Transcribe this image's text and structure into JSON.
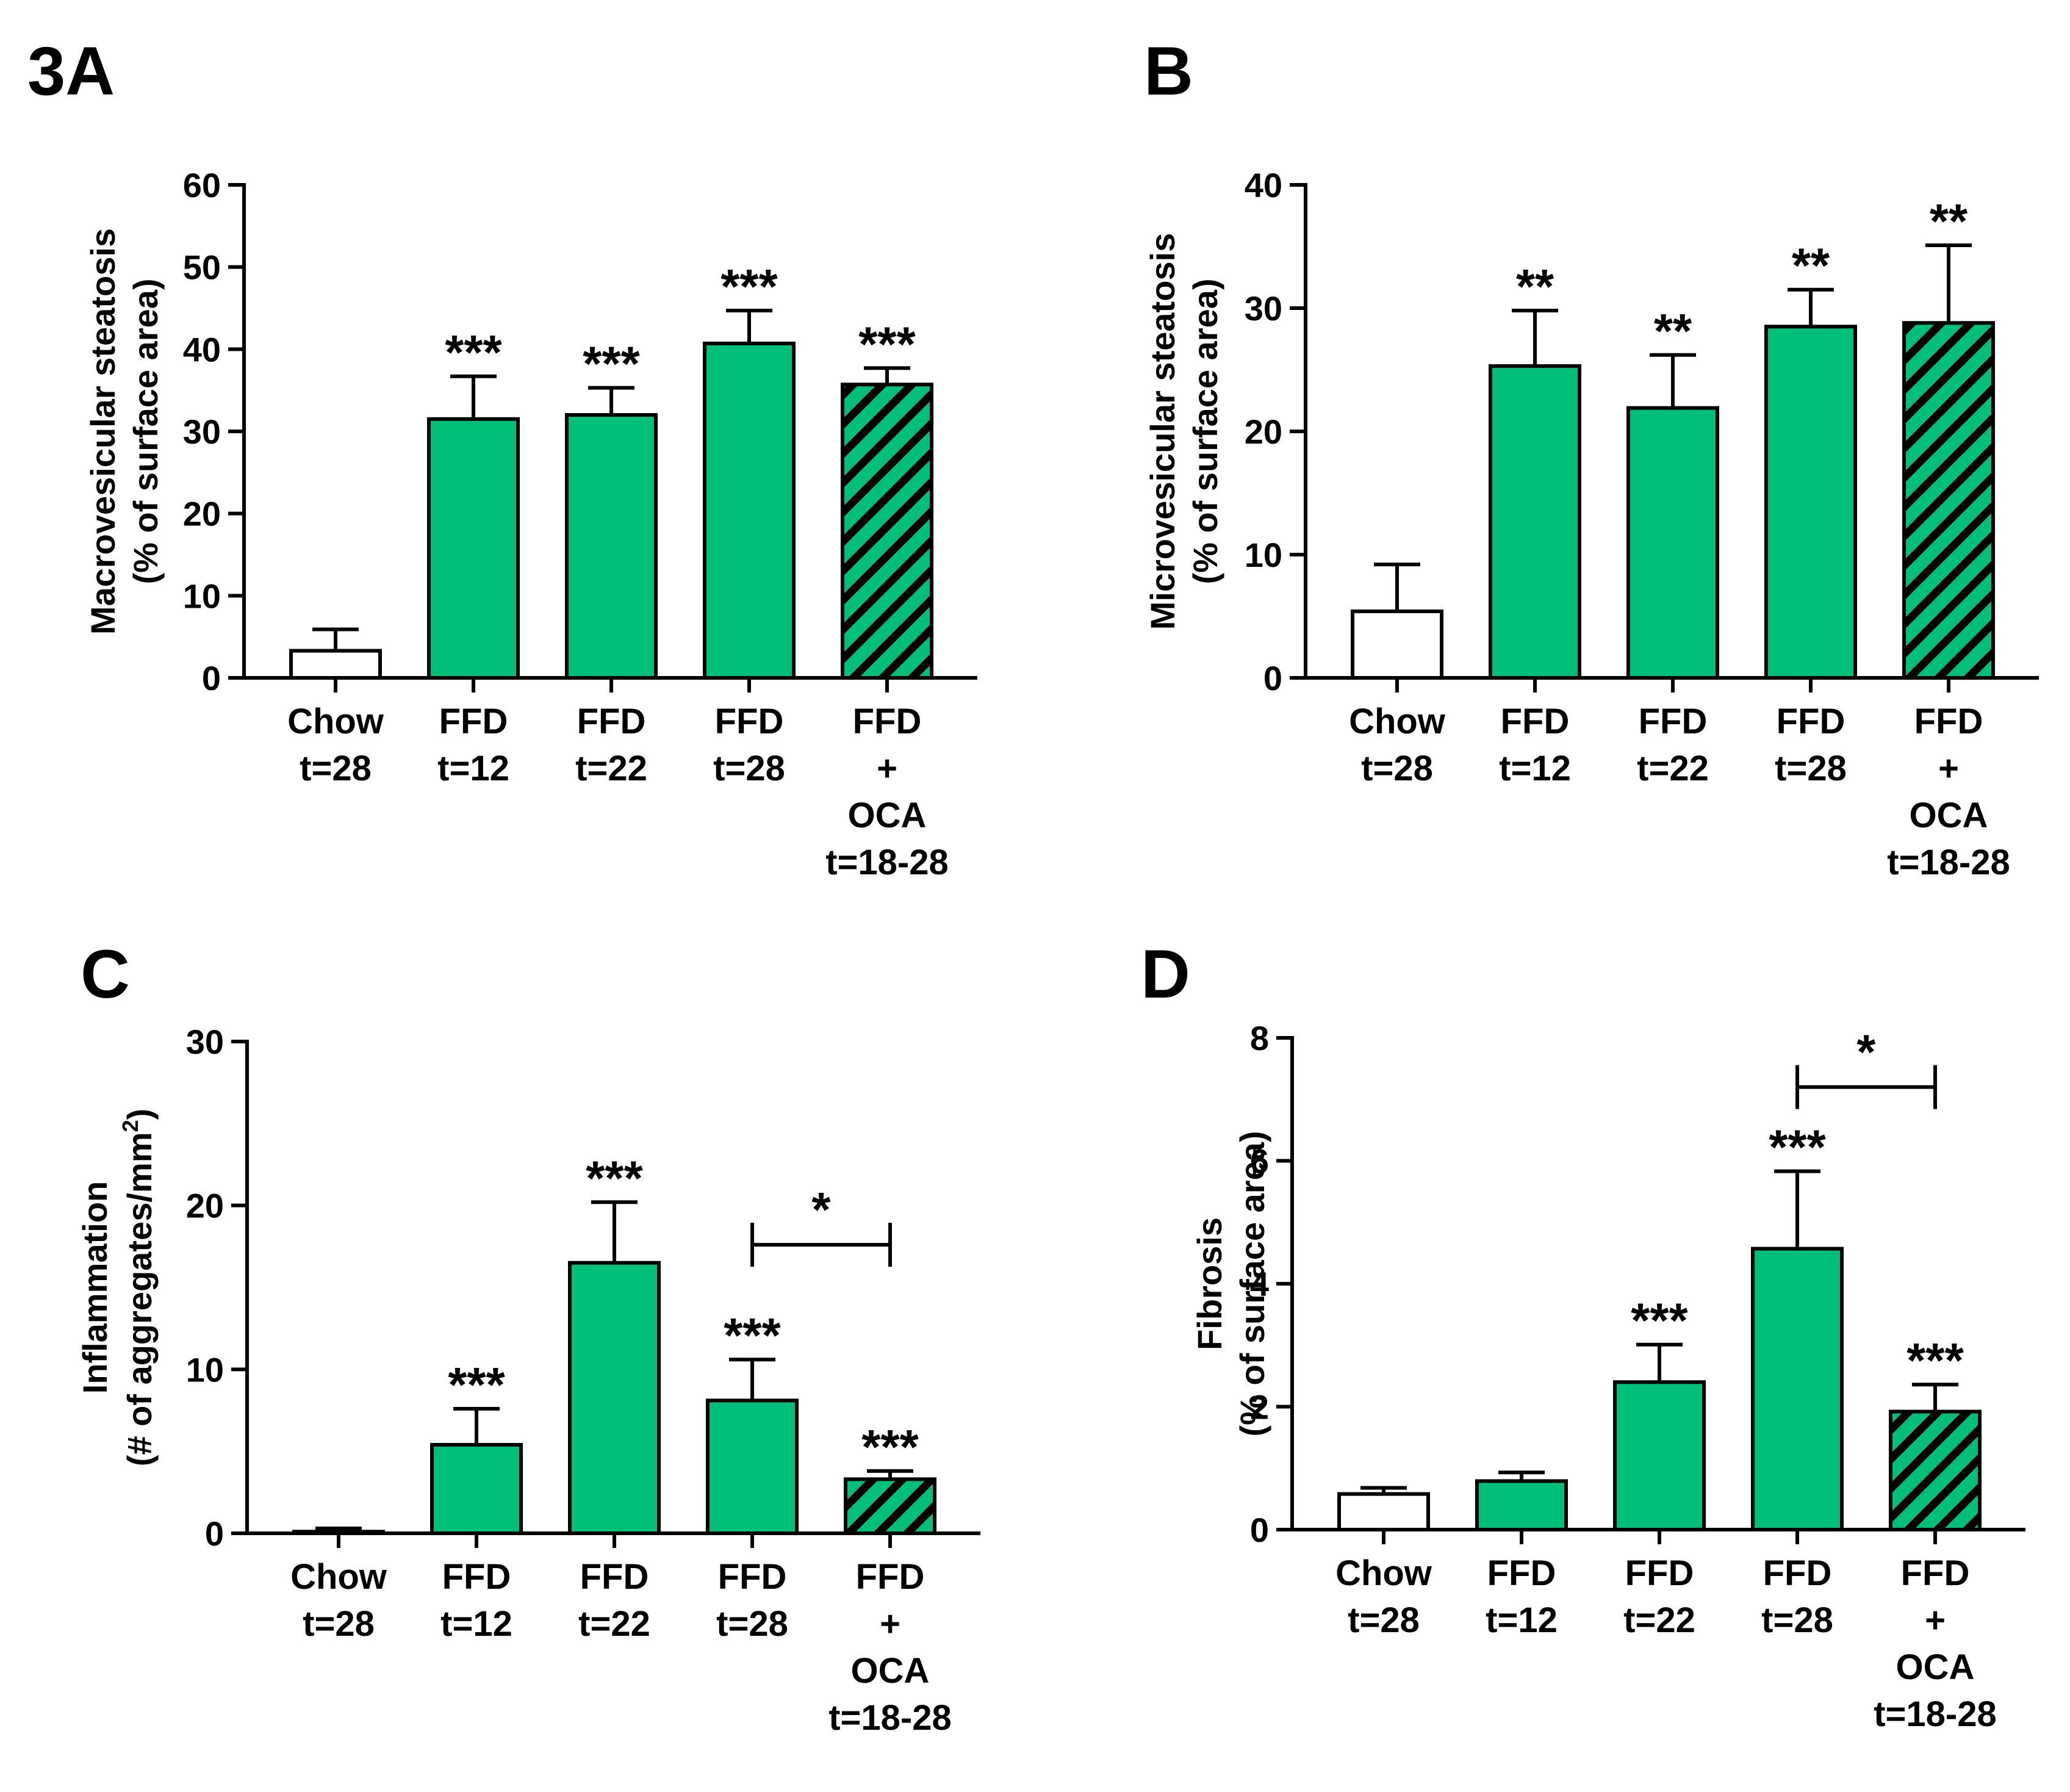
{
  "figure": {
    "colors": {
      "ffd": "#00BF78",
      "chow": "#FFFFFF",
      "stroke": "#000000"
    }
  },
  "chart_data": [
    {
      "panel_label": "3A",
      "type": "bar",
      "categories": [
        [
          "Chow",
          "t=28"
        ],
        [
          "FFD",
          "t=12"
        ],
        [
          "FFD",
          "t=22"
        ],
        [
          "FFD",
          "t=28"
        ],
        [
          "FFD",
          "+",
          "OCA",
          "t=18-28"
        ]
      ],
      "values": [
        3.3,
        31.5,
        32.0,
        40.7,
        35.7
      ],
      "errors": [
        2.6,
        5.2,
        3.3,
        4.0,
        2.0
      ],
      "fills": [
        "white",
        "green",
        "green",
        "green",
        "hatched"
      ],
      "significance": [
        "",
        "***",
        "***",
        "***",
        "***"
      ],
      "ylabel": [
        "Macrovesicular steatosis",
        "(% of surface area)"
      ],
      "ylim": [
        0,
        60
      ],
      "yticks": [
        0,
        10,
        20,
        30,
        40,
        50,
        60
      ],
      "brackets": []
    },
    {
      "panel_label": "B",
      "type": "bar",
      "categories": [
        [
          "Chow",
          "t=28"
        ],
        [
          "FFD",
          "t=12"
        ],
        [
          "FFD",
          "t=22"
        ],
        [
          "FFD",
          "t=28"
        ],
        [
          "FFD",
          "+",
          "OCA",
          "t=18-28"
        ]
      ],
      "values": [
        5.4,
        25.3,
        21.9,
        28.5,
        28.8
      ],
      "errors": [
        3.8,
        4.5,
        4.3,
        3.0,
        6.3
      ],
      "fills": [
        "white",
        "green",
        "green",
        "green",
        "hatched"
      ],
      "significance": [
        "",
        "**",
        "**",
        "**",
        "**"
      ],
      "ylabel": [
        "Microvesicular steatosis",
        "(% of surface area)"
      ],
      "ylim": [
        0,
        40
      ],
      "yticks": [
        0,
        10,
        20,
        30,
        40
      ],
      "brackets": []
    },
    {
      "panel_label": "C",
      "type": "bar",
      "categories": [
        [
          "Chow",
          "t=28"
        ],
        [
          "FFD",
          "t=12"
        ],
        [
          "FFD",
          "t=22"
        ],
        [
          "FFD",
          "t=28"
        ],
        [
          "FFD",
          "+",
          "OCA",
          "t=18-28"
        ]
      ],
      "values": [
        0.1,
        5.4,
        16.5,
        8.1,
        3.3
      ],
      "errors": [
        0.2,
        2.2,
        3.7,
        2.5,
        0.5
      ],
      "fills": [
        "white",
        "green",
        "green",
        "green",
        "hatched"
      ],
      "significance": [
        "",
        "***",
        "***",
        "***",
        "***"
      ],
      "ylabel": [
        "Inflammation",
        "(# of aggregates/mm",
        "2",
        ")"
      ],
      "ylim": [
        0,
        30
      ],
      "yticks": [
        0,
        10,
        20,
        30
      ],
      "brackets": [
        {
          "from": 3,
          "to": 4,
          "label": "*",
          "y": 17.6
        }
      ]
    },
    {
      "panel_label": "D",
      "type": "bar",
      "categories": [
        [
          "Chow",
          "t=28"
        ],
        [
          "FFD",
          "t=12"
        ],
        [
          "FFD",
          "t=22"
        ],
        [
          "FFD",
          "t=28"
        ],
        [
          "FFD",
          "+",
          "OCA",
          "t=18-28"
        ]
      ],
      "values": [
        0.58,
        0.79,
        2.4,
        4.57,
        1.92
      ],
      "errors": [
        0.1,
        0.14,
        0.61,
        1.26,
        0.44
      ],
      "fills": [
        "white",
        "green",
        "green",
        "green",
        "hatched"
      ],
      "significance": [
        "",
        "",
        "***",
        "***",
        "***"
      ],
      "ylabel": [
        "Fibrosis",
        "(% of surface area)"
      ],
      "ylim": [
        0,
        8
      ],
      "yticks": [
        0,
        2,
        4,
        6,
        8
      ],
      "brackets": [
        {
          "from": 3,
          "to": 4,
          "label": "*",
          "y": 7.2
        }
      ]
    }
  ]
}
